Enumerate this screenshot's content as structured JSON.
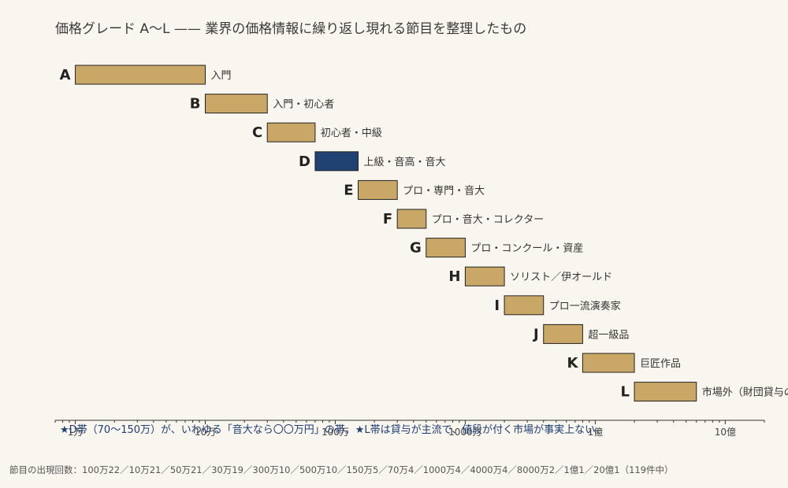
{
  "chart_data": {
    "type": "bar",
    "subtype": "floating-range",
    "title": "価格グレード A〜L —— 業界の価格情報に繰り返し現れる節目を整理したもの",
    "x_scale": "log",
    "xlim": [
      7000,
      2000000000
    ],
    "x_ticks": [
      {
        "value": 10000,
        "label": "1万"
      },
      {
        "value": 100000,
        "label": "10万"
      },
      {
        "value": 1000000,
        "label": "100万"
      },
      {
        "value": 10000000,
        "label": "1000万"
      },
      {
        "value": 100000000,
        "label": "1億"
      },
      {
        "value": 1000000000,
        "label": "10億"
      }
    ],
    "grades": [
      {
        "grade": "A",
        "low": 10000,
        "high": 100000,
        "label": "入門",
        "highlight": false
      },
      {
        "grade": "B",
        "low": 100000,
        "high": 300000,
        "label": "入門・初心者",
        "highlight": false
      },
      {
        "grade": "C",
        "low": 300000,
        "high": 700000,
        "label": "初心者・中級",
        "highlight": false
      },
      {
        "grade": "D",
        "low": 700000,
        "high": 1500000,
        "label": "上級・音高・音大",
        "highlight": true
      },
      {
        "grade": "E",
        "low": 1500000,
        "high": 3000000,
        "label": "プロ・専門・音大",
        "highlight": false
      },
      {
        "grade": "F",
        "low": 3000000,
        "high": 5000000,
        "label": "プロ・音大・コレクター",
        "highlight": false
      },
      {
        "grade": "G",
        "low": 5000000,
        "high": 10000000,
        "label": "プロ・コンクール・資産",
        "highlight": false
      },
      {
        "grade": "H",
        "low": 10000000,
        "high": 20000000,
        "label": "ソリスト／伊オールド",
        "highlight": false
      },
      {
        "grade": "I",
        "low": 20000000,
        "high": 40000000,
        "label": "プロ一流演奏家",
        "highlight": false
      },
      {
        "grade": "J",
        "low": 40000000,
        "high": 80000000,
        "label": "超一級品",
        "highlight": false
      },
      {
        "grade": "K",
        "low": 80000000,
        "high": 200000000,
        "label": "巨匠作品",
        "highlight": false
      },
      {
        "grade": "L",
        "low": 200000000,
        "high": 600000000,
        "label": "市場外（財団貸与の世界）",
        "highlight": false
      }
    ],
    "annotation": "★D帯（70〜150万）が、いわゆる「音大なら〇〇万円」の帯。★L帯は貸与が主流で、値段が付く市場が事実上ない。",
    "footer": "節目の出現回数：100万22／10万21／50万21／30万19／300万10／500万10／150万5／70万4／1000万4／4000万4／8000万2／1億1／20億1（119件中）"
  },
  "colors": {
    "background": "#f9f6ef",
    "bar": "#c9a767",
    "bar_highlight": "#1f4272",
    "bar_stroke": "#222222",
    "annotation": "#1d3d73"
  }
}
